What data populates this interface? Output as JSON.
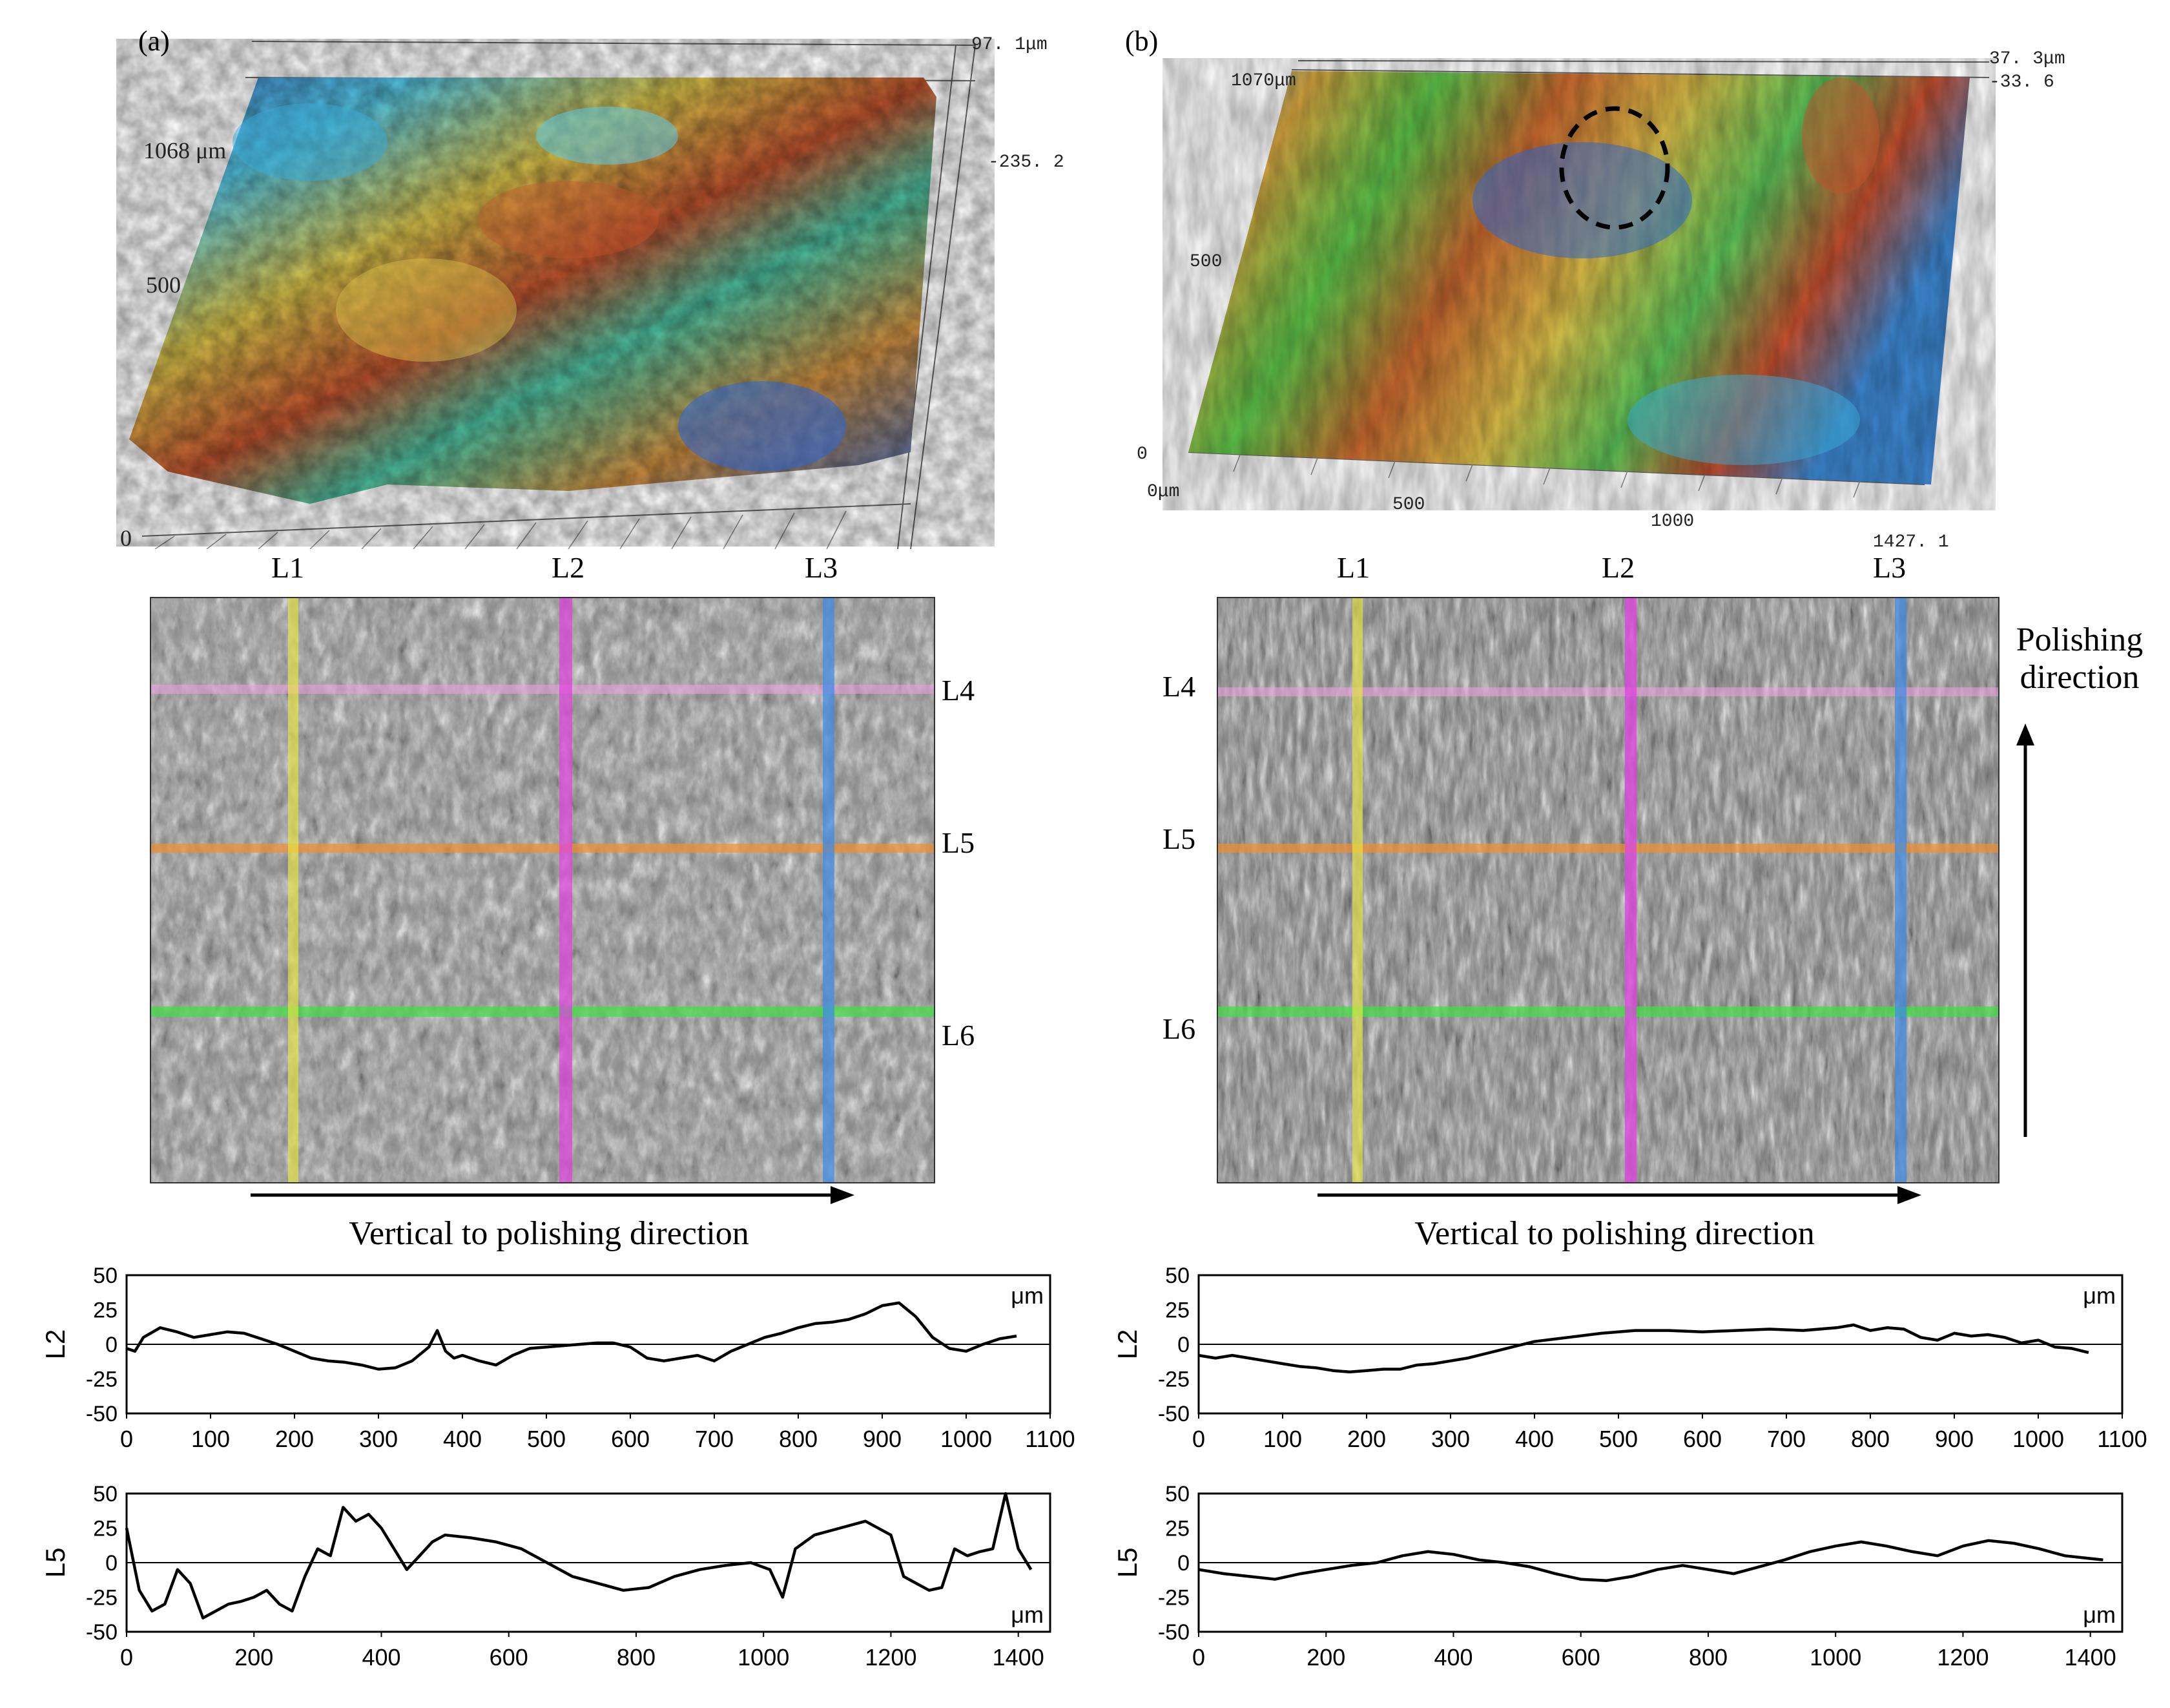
{
  "panels": {
    "a": {
      "label": "(a)",
      "map_labels": {
        "y_top": "1068 μm",
        "y_mid": "500",
        "y_zero": "0",
        "z_max": "97. 1μm",
        "z_min": "-235. 2"
      },
      "vertical_lines": [
        "L1",
        "L2",
        "L3"
      ],
      "horizontal_lines": [
        "L4",
        "L5",
        "L6"
      ],
      "arrow_label": "Vertical to polishing direction"
    },
    "b": {
      "label": "(b)",
      "map_labels": {
        "y_top": "1070μm",
        "y_mid": "500",
        "y_zero": "0",
        "x_zero": "0μm",
        "x_mid": "500",
        "x_1000": "1000",
        "x_max": "1427. 1",
        "z_max": "37. 3μm",
        "z_min": "-33. 6"
      },
      "vertical_lines": [
        "L1",
        "L2",
        "L3"
      ],
      "horizontal_lines": [
        "L4",
        "L5",
        "L6"
      ],
      "arrow_label": "Vertical to polishing direction",
      "side_label_line1": "Polishing",
      "side_label_line2": "direction"
    }
  },
  "colors": {
    "L1": "#e8e640",
    "L2": "#e040e0",
    "L3": "#3a8ae8",
    "L4": "#f0a0e0",
    "L5": "#f09030",
    "L6": "#40e040"
  },
  "chart_data": [
    {
      "id": "a-L2",
      "type": "line",
      "ylabel": "L2",
      "unit": "μm",
      "xlim": [
        0,
        1100
      ],
      "ylim": [
        -50,
        50
      ],
      "xticks": [
        0,
        100,
        200,
        300,
        400,
        500,
        600,
        700,
        800,
        900,
        1000,
        1100
      ],
      "yticks": [
        50,
        25,
        0,
        -25,
        -50
      ],
      "x": [
        0,
        10,
        20,
        40,
        60,
        80,
        100,
        120,
        140,
        160,
        180,
        200,
        220,
        240,
        260,
        280,
        300,
        320,
        340,
        360,
        370,
        380,
        390,
        400,
        420,
        440,
        460,
        480,
        500,
        520,
        540,
        560,
        580,
        600,
        620,
        640,
        660,
        680,
        700,
        720,
        740,
        760,
        780,
        800,
        820,
        840,
        860,
        880,
        900,
        920,
        940,
        960,
        980,
        1000,
        1020,
        1040,
        1060
      ],
      "y": [
        -3,
        -5,
        5,
        12,
        9,
        5,
        7,
        9,
        8,
        4,
        0,
        -5,
        -10,
        -12,
        -13,
        -15,
        -18,
        -17,
        -12,
        -2,
        10,
        -5,
        -10,
        -8,
        -12,
        -15,
        -8,
        -3,
        -2,
        -1,
        0,
        1,
        1,
        -2,
        -10,
        -12,
        -10,
        -8,
        -12,
        -5,
        0,
        5,
        8,
        12,
        15,
        16,
        18,
        22,
        28,
        30,
        20,
        5,
        -3,
        -5,
        0,
        4,
        6
      ]
    },
    {
      "id": "a-L5",
      "type": "line",
      "ylabel": "L5",
      "unit": "μm",
      "xlim": [
        0,
        1450
      ],
      "ylim": [
        -50,
        50
      ],
      "xticks": [
        0,
        200,
        400,
        600,
        800,
        1000,
        1200,
        1400
      ],
      "yticks": [
        50,
        25,
        0,
        -25,
        -50
      ],
      "x": [
        0,
        20,
        40,
        60,
        80,
        100,
        120,
        140,
        160,
        180,
        200,
        220,
        240,
        260,
        280,
        300,
        320,
        340,
        360,
        380,
        400,
        420,
        440,
        460,
        480,
        500,
        540,
        580,
        620,
        660,
        700,
        740,
        780,
        820,
        860,
        900,
        940,
        980,
        1010,
        1030,
        1050,
        1080,
        1120,
        1160,
        1200,
        1220,
        1240,
        1260,
        1280,
        1300,
        1320,
        1340,
        1360,
        1380,
        1400,
        1420
      ],
      "y": [
        25,
        -20,
        -35,
        -30,
        -5,
        -15,
        -40,
        -35,
        -30,
        -28,
        -25,
        -20,
        -30,
        -35,
        -10,
        10,
        5,
        40,
        30,
        35,
        25,
        10,
        -5,
        5,
        15,
        20,
        18,
        15,
        10,
        0,
        -10,
        -15,
        -20,
        -18,
        -10,
        -5,
        -2,
        0,
        -5,
        -25,
        10,
        20,
        25,
        30,
        20,
        -10,
        -15,
        -20,
        -18,
        10,
        5,
        8,
        10,
        50,
        10,
        -5
      ]
    },
    {
      "id": "b-L2",
      "type": "line",
      "ylabel": "L2",
      "unit": "μm",
      "xlim": [
        0,
        1100
      ],
      "ylim": [
        -50,
        50
      ],
      "xticks": [
        0,
        100,
        200,
        300,
        400,
        500,
        600,
        700,
        800,
        900,
        1000,
        1100
      ],
      "yticks": [
        50,
        25,
        0,
        -25,
        -50
      ],
      "x": [
        0,
        20,
        40,
        60,
        80,
        100,
        120,
        140,
        160,
        180,
        200,
        220,
        240,
        260,
        280,
        300,
        320,
        340,
        360,
        380,
        400,
        440,
        480,
        520,
        560,
        600,
        640,
        680,
        720,
        760,
        780,
        800,
        820,
        840,
        860,
        880,
        900,
        920,
        940,
        960,
        980,
        1000,
        1020,
        1040,
        1060
      ],
      "y": [
        -8,
        -10,
        -8,
        -10,
        -12,
        -14,
        -16,
        -17,
        -19,
        -20,
        -19,
        -18,
        -18,
        -15,
        -14,
        -12,
        -10,
        -7,
        -4,
        -1,
        2,
        5,
        8,
        10,
        10,
        9,
        10,
        11,
        10,
        12,
        14,
        10,
        12,
        11,
        5,
        3,
        8,
        6,
        7,
        5,
        1,
        3,
        -2,
        -3,
        -6
      ]
    },
    {
      "id": "b-L5",
      "type": "line",
      "ylabel": "L5",
      "unit": "μm",
      "xlim": [
        0,
        1450
      ],
      "ylim": [
        -50,
        50
      ],
      "xticks": [
        0,
        200,
        400,
        600,
        800,
        1000,
        1200,
        1400
      ],
      "yticks": [
        50,
        25,
        0,
        -25,
        -50
      ],
      "x": [
        0,
        40,
        80,
        120,
        160,
        200,
        240,
        280,
        320,
        360,
        400,
        440,
        480,
        520,
        560,
        600,
        640,
        680,
        720,
        760,
        800,
        840,
        880,
        920,
        960,
        1000,
        1040,
        1080,
        1120,
        1160,
        1200,
        1240,
        1280,
        1320,
        1360,
        1400,
        1420
      ],
      "y": [
        -5,
        -8,
        -10,
        -12,
        -8,
        -5,
        -2,
        0,
        5,
        8,
        6,
        2,
        0,
        -3,
        -8,
        -12,
        -13,
        -10,
        -5,
        -2,
        -5,
        -8,
        -3,
        2,
        8,
        12,
        15,
        12,
        8,
        5,
        12,
        16,
        14,
        10,
        5,
        3,
        2
      ]
    }
  ]
}
